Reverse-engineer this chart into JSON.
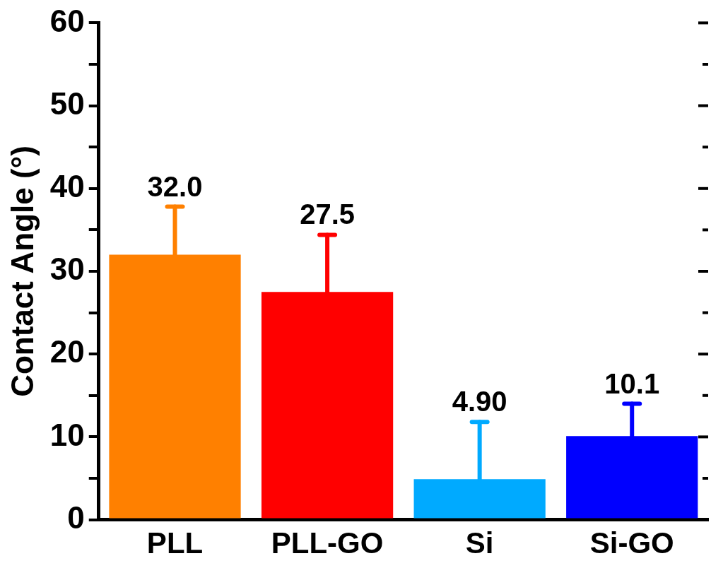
{
  "chart_data": {
    "type": "bar",
    "ylabel": "Contact Angle (°)",
    "categories": [
      "PLL",
      "PLL-GO",
      "Si",
      "Si-GO"
    ],
    "values": [
      32.0,
      27.5,
      4.9,
      10.1
    ],
    "colors": [
      "#ff8000",
      "#ff0000",
      "#00aaff",
      "#0000ff"
    ],
    "errors": [
      [
        32.0,
        37.8
      ],
      [
        27.5,
        34.4
      ],
      [
        4.9,
        11.8
      ],
      [
        10.1,
        14.0
      ]
    ],
    "value_labels": [
      "32.0",
      "27.5",
      "4.90",
      "10.1"
    ],
    "ylim": [
      0,
      60
    ],
    "yticks": [
      0,
      {
        "value": 5,
        "label": null
      },
      10,
      {
        "value": 15,
        "label": null
      },
      20,
      {
        "value": 25,
        "label": null
      },
      30,
      {
        "value": 35,
        "label": null
      },
      40,
      {
        "value": 45,
        "label": null
      },
      50,
      {
        "value": 55,
        "label": null
      },
      60
    ],
    "grid": false,
    "legend": false
  }
}
